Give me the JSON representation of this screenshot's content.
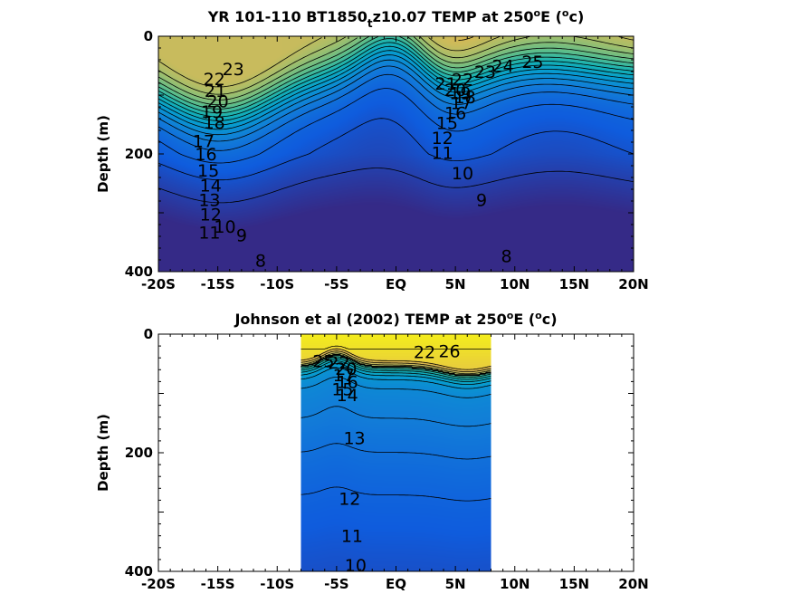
{
  "chart_data": [
    {
      "type": "contour",
      "title_parts": [
        "YR 101-110 BT1850",
        "t",
        "z10.07 TEMP at 250",
        "o",
        "E (",
        "o",
        "c)"
      ],
      "ylabel": "Depth (m)",
      "xlim": [
        -20,
        20
      ],
      "ylim": [
        0,
        400
      ],
      "x_ticks": [
        -20,
        -15,
        -10,
        -5,
        0,
        5,
        10,
        15,
        20
      ],
      "x_tick_labels": [
        "-20S",
        "-15S",
        "-10S",
        "-5S",
        "EQ",
        "5N",
        "10N",
        "15N",
        "20N"
      ],
      "y_ticks": [
        0,
        200,
        400
      ],
      "y_tick_labels": [
        "0",
        "200",
        "400"
      ],
      "data_extent_x": [
        -20,
        20
      ],
      "color_range": [
        7,
        27
      ],
      "contour_levels": [
        8,
        9,
        10,
        11,
        12,
        13,
        14,
        15,
        16,
        17,
        18,
        19,
        20,
        21,
        22,
        23,
        24,
        25
      ],
      "contour_labels": [
        {
          "text": "23",
          "x": -13.7,
          "y": 55
        },
        {
          "text": "22",
          "x": -15.3,
          "y": 72
        },
        {
          "text": "21",
          "x": -15.2,
          "y": 92
        },
        {
          "text": "20",
          "x": -15.0,
          "y": 110
        },
        {
          "text": "19",
          "x": -15.5,
          "y": 128
        },
        {
          "text": "18",
          "x": -15.3,
          "y": 146
        },
        {
          "text": "17",
          "x": -16.2,
          "y": 178
        },
        {
          "text": "16",
          "x": -16.0,
          "y": 200
        },
        {
          "text": "15",
          "x": -15.8,
          "y": 228
        },
        {
          "text": "14",
          "x": -15.6,
          "y": 253
        },
        {
          "text": "13",
          "x": -15.7,
          "y": 278
        },
        {
          "text": "12",
          "x": -15.6,
          "y": 302
        },
        {
          "text": "11",
          "x": -15.7,
          "y": 333
        },
        {
          "text": "10",
          "x": -14.4,
          "y": 323
        },
        {
          "text": "9",
          "x": -13.0,
          "y": 338
        },
        {
          "text": "8",
          "x": -11.4,
          "y": 381
        },
        {
          "text": "22",
          "x": 5.6,
          "y": 73
        },
        {
          "text": "23",
          "x": 7.5,
          "y": 60
        },
        {
          "text": "24",
          "x": 9.0,
          "y": 50
        },
        {
          "text": "25",
          "x": 11.5,
          "y": 43
        },
        {
          "text": "21",
          "x": 4.2,
          "y": 80
        },
        {
          "text": "20",
          "x": 5.0,
          "y": 91
        },
        {
          "text": "19",
          "x": 5.4,
          "y": 96
        },
        {
          "text": "18",
          "x": 5.8,
          "y": 103
        },
        {
          "text": "17",
          "x": 5.5,
          "y": 113
        },
        {
          "text": "16",
          "x": 5.0,
          "y": 130
        },
        {
          "text": "15",
          "x": 4.3,
          "y": 147
        },
        {
          "text": "12",
          "x": 3.9,
          "y": 172
        },
        {
          "text": "11",
          "x": 3.9,
          "y": 198
        },
        {
          "text": "10",
          "x": 5.6,
          "y": 232
        },
        {
          "text": "9",
          "x": 7.2,
          "y": 278
        },
        {
          "text": "8",
          "x": 9.3,
          "y": 373
        }
      ]
    },
    {
      "type": "contour",
      "title_parts": [
        "Johnson et al (2002) TEMP at 250",
        "o",
        "E (",
        "o",
        "c)"
      ],
      "ylabel": "Depth (m)",
      "xlim": [
        -20,
        20
      ],
      "ylim": [
        0,
        400
      ],
      "x_ticks": [
        -20,
        -15,
        -10,
        -5,
        0,
        5,
        10,
        15,
        20
      ],
      "x_tick_labels": [
        "-20S",
        "-15S",
        "-10S",
        "-5S",
        "EQ",
        "5N",
        "10N",
        "15N",
        "20N"
      ],
      "y_ticks": [
        0,
        200,
        400
      ],
      "y_tick_labels": [
        "0",
        "200",
        "400"
      ],
      "data_extent_x": [
        -8,
        8
      ],
      "color_range": [
        7,
        27
      ],
      "contour_levels": [
        10,
        11,
        12,
        13,
        14,
        15,
        16,
        17,
        18,
        19,
        20,
        21,
        22,
        23,
        24,
        25,
        26
      ],
      "contour_labels": [
        {
          "text": "25",
          "x": -6.1,
          "y": 45
        },
        {
          "text": "22",
          "x": -4.8,
          "y": 47
        },
        {
          "text": "20",
          "x": -4.2,
          "y": 58
        },
        {
          "text": "17",
          "x": -4.4,
          "y": 69
        },
        {
          "text": "16",
          "x": -4.1,
          "y": 80
        },
        {
          "text": "15",
          "x": -4.5,
          "y": 92
        },
        {
          "text": "14",
          "x": -4.1,
          "y": 102
        },
        {
          "text": "22",
          "x": 2.4,
          "y": 30
        },
        {
          "text": "26",
          "x": 4.5,
          "y": 28
        },
        {
          "text": "13",
          "x": -3.5,
          "y": 175
        },
        {
          "text": "12",
          "x": -3.9,
          "y": 277
        },
        {
          "text": "11",
          "x": -3.7,
          "y": 340
        },
        {
          "text": "10",
          "x": -3.4,
          "y": 389
        }
      ]
    }
  ]
}
